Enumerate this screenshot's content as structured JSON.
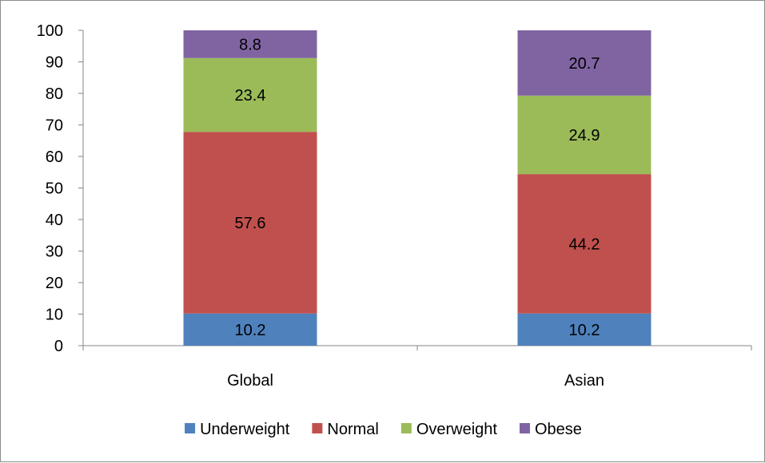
{
  "chart_data": {
    "type": "bar",
    "stacked": true,
    "categories": [
      "Global",
      "Asian"
    ],
    "series": [
      {
        "name": "Underweight",
        "values": [
          10.2,
          10.2
        ],
        "color": "#4f81bd"
      },
      {
        "name": "Normal",
        "values": [
          57.6,
          44.2
        ],
        "color": "#c0504d"
      },
      {
        "name": "Overweight",
        "values": [
          23.4,
          24.9
        ],
        "color": "#9bbb59"
      },
      {
        "name": "Obese",
        "values": [
          8.8,
          20.7
        ],
        "color": "#8064a2"
      }
    ],
    "ylim": [
      0,
      100
    ],
    "yticks": [
      0,
      10,
      20,
      30,
      40,
      50,
      60,
      70,
      80,
      90,
      100
    ],
    "legend": "bottom",
    "grid": false
  }
}
